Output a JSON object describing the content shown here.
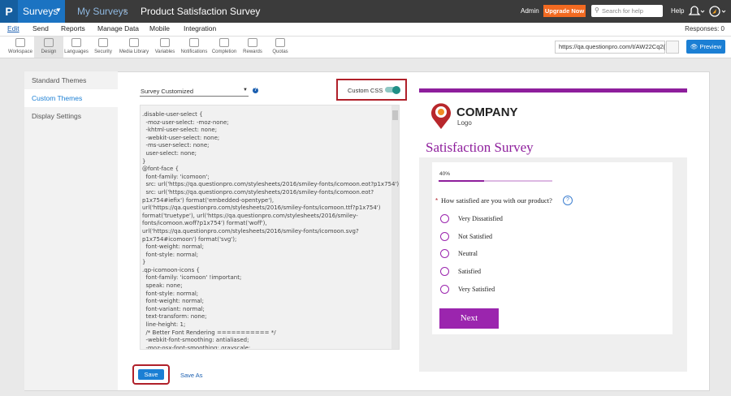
{
  "top_bar": {
    "app_menu": "Surveys",
    "breadcrumb": [
      "My Surveys",
      "Product Satisfaction Survey"
    ],
    "user": "Admin",
    "upgrade_button": "Upgrade Now",
    "search_placeholder": "Search for help",
    "help": "Help"
  },
  "menu_bar": {
    "items": [
      "Edit",
      "Send",
      "Reports",
      "Manage Data",
      "Mobile",
      "Integration"
    ],
    "responses": "Responses: 0"
  },
  "toolbar": {
    "tools": [
      "Workspace",
      "Design",
      "Languages",
      "Security",
      "Media Library",
      "Variables",
      "Notifications",
      "Completion",
      "Rewards",
      "Quotas"
    ],
    "survey_url": "https://qa.questionpro.com/t/AW22Cq2(",
    "preview_button": "Preview"
  },
  "sidebar": {
    "items": [
      "Standard Themes",
      "Custom Themes",
      "Display Settings"
    ]
  },
  "editor": {
    "theme_select": "Survey Customized",
    "custom_css_label": "Custom CSS",
    "css_lines": [
      ".disable-user-select {",
      "  -moz-user-select: -moz-none;",
      "  -khtml-user-select: none;",
      "  -webkit-user-select: none;",
      "  -ms-user-select: none;",
      "  user-select: none;",
      "}",
      "@font-face {",
      "  font-family: 'icomoon';",
      "  src: url('https://qa.questionpro.com/stylesheets/2016/smiley-fonts/icomoon.eot?p1x754');",
      "  src: url('https://qa.questionpro.com/stylesheets/2016/smiley-fonts/icomoon.eot?",
      "p1x754#iefix') format('embedded-opentype'),",
      "url('https://qa.questionpro.com/stylesheets/2016/smiley-fonts/icomoon.ttf?p1x754')",
      "format('truetype'), url('https://qa.questionpro.com/stylesheets/2016/smiley-",
      "fonts/icomoon.woff?p1x754') format('woff'),",
      "url('https://qa.questionpro.com/stylesheets/2016/smiley-fonts/icomoon.svg?",
      "p1x754#icomoon') format('svg');",
      "  font-weight: normal;",
      "  font-style: normal;",
      "}",
      ".qp-icomoon-icons {",
      "  font-family: 'icomoon' !important;",
      "  speak: none;",
      "  font-style: normal;",
      "  font-weight: normal;",
      "  font-variant: normal;",
      "  text-transform: none;",
      "  line-height: 1;",
      "  /* Better Font Rendering =========== */",
      "  -webkit-font-smoothing: antialiased;",
      "  -moz-osx-font-smoothing: grayscale;"
    ],
    "save_button": "Save",
    "save_as_link": "Save As"
  },
  "preview": {
    "company_name": "COMPANY",
    "company_tagline": "Logo",
    "survey_title": "Satisfaction Survey",
    "progress": {
      "value": 40,
      "label": "40%"
    },
    "required_marker": "*",
    "question": "How satisfied are you with our product?",
    "options": [
      "Very Dissatisfied",
      "Not Satisfied",
      "Neutral",
      "Satisfied",
      "Very Satisfied"
    ],
    "next_button": "Next"
  }
}
